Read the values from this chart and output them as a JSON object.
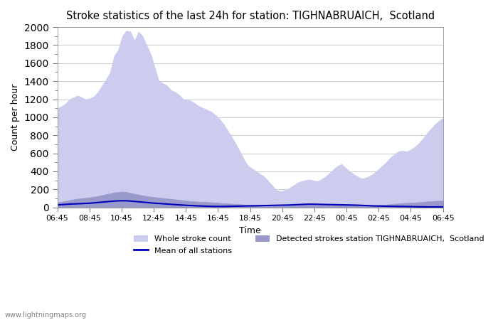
{
  "title": "Stroke statistics of the last 24h for station: TIGHNABRUAICH,  Scotland",
  "xlabel": "Time",
  "ylabel": "Count per hour",
  "ylim": [
    0,
    2000
  ],
  "yticks": [
    0,
    200,
    400,
    600,
    800,
    1000,
    1200,
    1400,
    1600,
    1800,
    2000
  ],
  "xtick_labels": [
    "06:45",
    "08:45",
    "10:45",
    "12:45",
    "14:45",
    "16:45",
    "18:45",
    "20:45",
    "22:45",
    "00:45",
    "02:45",
    "04:45",
    "06:45"
  ],
  "color_whole": "#ccccee",
  "color_detected": "#9999cc",
  "color_mean_line": "#0000bb",
  "watermark": "www.lightningmaps.org",
  "legend_whole": "Whole stroke count",
  "legend_detected": "Detected strokes station TIGHNABRUAICH,  Scotland",
  "legend_mean": "Mean of all stations",
  "whole_stroke_y": [
    1100,
    1120,
    1150,
    1200,
    1220,
    1240,
    1220,
    1200,
    1210,
    1230,
    1280,
    1350,
    1420,
    1500,
    1680,
    1750,
    1900,
    1960,
    1950,
    1850,
    1950,
    1900,
    1800,
    1700,
    1550,
    1400,
    1380,
    1350,
    1300,
    1280,
    1250,
    1200,
    1200,
    1180,
    1150,
    1120,
    1100,
    1080,
    1060,
    1020,
    980,
    920,
    850,
    780,
    700,
    620,
    530,
    460,
    430,
    400,
    370,
    340,
    290,
    240,
    190,
    180,
    190,
    210,
    240,
    270,
    290,
    300,
    310,
    300,
    290,
    310,
    340,
    380,
    420,
    460,
    480,
    440,
    400,
    370,
    340,
    320,
    330,
    350,
    380,
    420,
    460,
    500,
    550,
    590,
    620,
    630,
    620,
    640,
    670,
    710,
    760,
    820,
    870,
    920,
    960,
    990
  ],
  "detected_stroke_y": [
    55,
    62,
    70,
    80,
    88,
    95,
    100,
    105,
    110,
    118,
    125,
    135,
    145,
    155,
    165,
    170,
    175,
    170,
    160,
    150,
    140,
    132,
    125,
    118,
    112,
    108,
    103,
    98,
    93,
    88,
    83,
    78,
    73,
    68,
    65,
    62,
    60,
    58,
    55,
    52,
    49,
    46,
    43,
    40,
    37,
    34,
    31,
    28,
    26,
    24,
    22,
    20,
    18,
    17,
    16,
    17,
    18,
    20,
    22,
    25,
    27,
    28,
    27,
    26,
    25,
    27,
    29,
    32,
    36,
    38,
    37,
    35,
    33,
    30,
    28,
    25,
    23,
    22,
    23,
    25,
    28,
    31,
    35,
    39,
    44,
    47,
    49,
    51,
    54,
    57,
    61,
    65,
    68,
    71,
    73,
    75
  ],
  "mean_line_y": [
    28,
    30,
    33,
    36,
    38,
    40,
    42,
    44,
    46,
    50,
    54,
    58,
    62,
    66,
    70,
    72,
    74,
    73,
    70,
    66,
    62,
    58,
    54,
    50,
    46,
    43,
    40,
    37,
    34,
    31,
    28,
    25,
    22,
    20,
    18,
    16,
    14,
    12,
    11,
    10,
    10,
    10,
    11,
    12,
    13,
    14,
    15,
    16,
    17,
    18,
    19,
    20,
    21,
    22,
    23,
    24,
    25,
    26,
    28,
    30,
    32,
    34,
    35,
    35,
    34,
    33,
    32,
    31,
    30,
    29,
    28,
    27,
    26,
    25,
    24,
    22,
    20,
    18,
    16,
    15,
    14,
    13,
    12,
    11,
    10,
    10,
    9,
    8,
    7,
    6,
    6,
    5,
    5,
    5,
    5,
    5
  ]
}
